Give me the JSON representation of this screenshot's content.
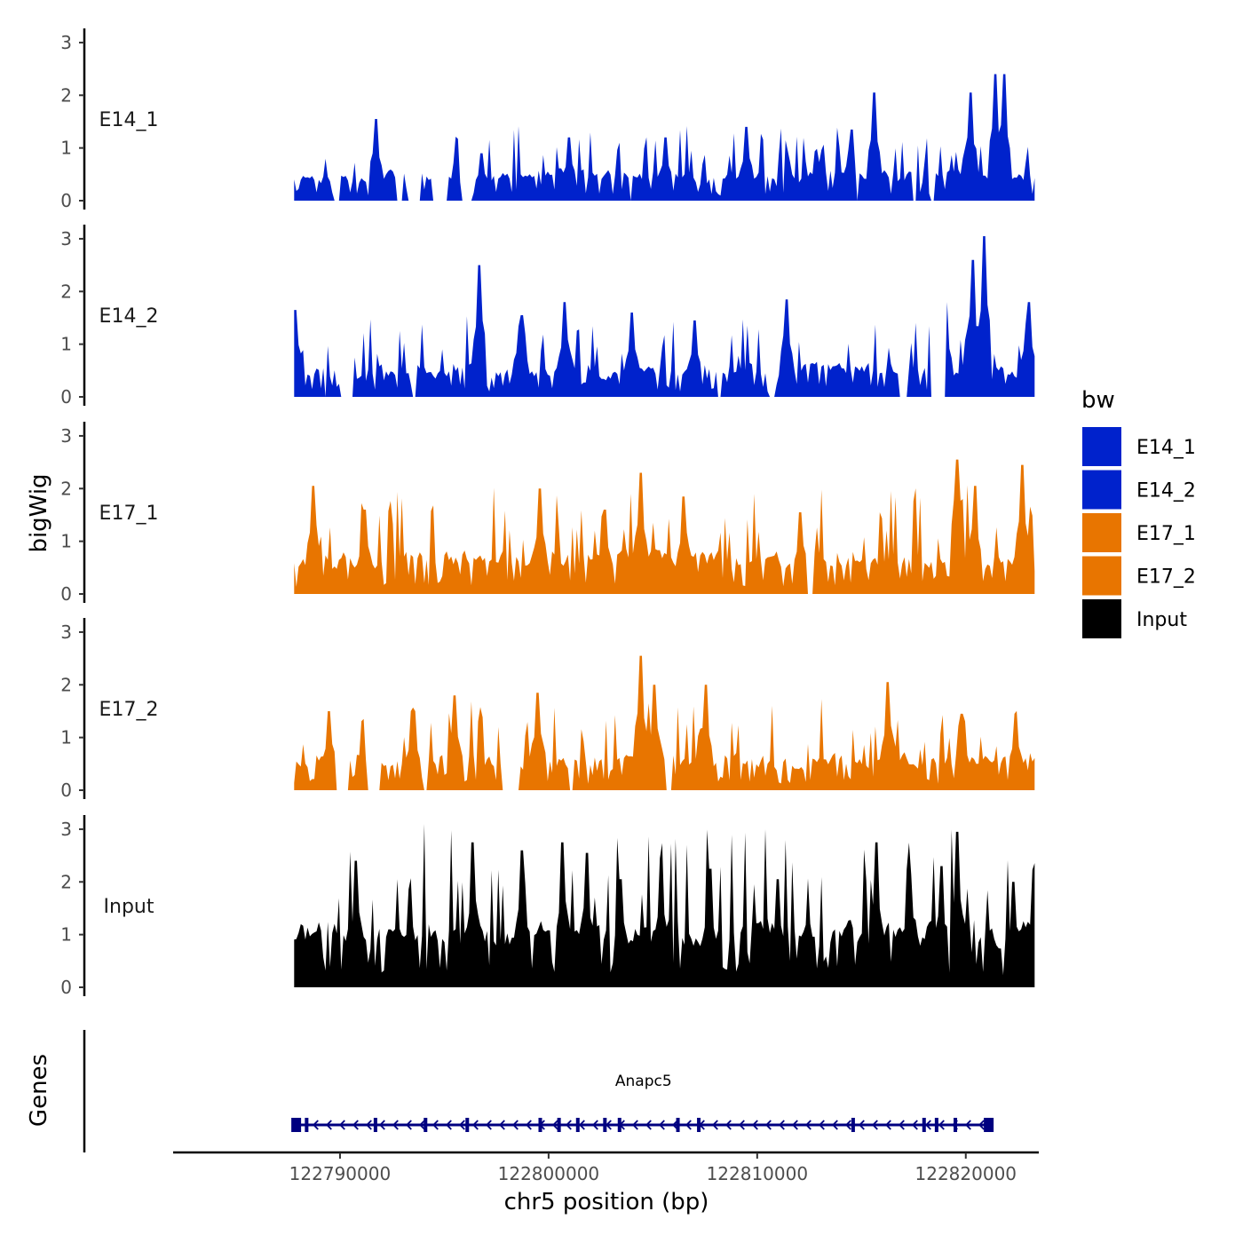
{
  "chart_data": {
    "type": "area",
    "chromosome": "chr5",
    "xlabel": "chr5 position (bp)",
    "ylabel": "bigWig",
    "xlim": [
      122782000,
      122823500
    ],
    "data_range": [
      122787800,
      122823300
    ],
    "x_ticks": [
      122790000,
      122800000,
      122810000,
      122820000
    ],
    "x_tick_labels": [
      "122790000",
      "122800000",
      "122810000",
      "122820000"
    ],
    "ylim": [
      0,
      3.1
    ],
    "y_ticks": [
      0,
      1,
      2,
      3
    ],
    "y_tick_labels": [
      "0",
      "1",
      "2",
      "3"
    ],
    "legend": {
      "title": "bw",
      "position": "right",
      "entries": [
        {
          "label": "E14_1",
          "color": "#0022CC"
        },
        {
          "label": "E14_2",
          "color": "#0022CC"
        },
        {
          "label": "E17_1",
          "color": "#E87500"
        },
        {
          "label": "E17_2",
          "color": "#E87500"
        },
        {
          "label": "Input",
          "color": "#000000"
        }
      ]
    },
    "series": [
      {
        "name": "E14_1",
        "color": "#0022CC",
        "seed": 11,
        "base": 0.45,
        "peaks": [
          [
            122791700,
            1.55
          ],
          [
            122796800,
            0.9
          ],
          [
            122801000,
            1.2
          ],
          [
            122805600,
            1.2
          ],
          [
            122809500,
            1.4
          ],
          [
            122814500,
            1.35
          ],
          [
            122815600,
            2.05
          ],
          [
            122820200,
            2.05
          ],
          [
            122821400,
            2.4
          ],
          [
            122821800,
            2.4
          ]
        ],
        "gaps": [
          [
            122789700,
            122790000
          ],
          [
            122792700,
            122793000
          ],
          [
            122793200,
            122793900
          ],
          [
            122794400,
            122795200
          ],
          [
            122795800,
            122796400
          ],
          [
            122803900,
            122804000
          ],
          [
            122814800,
            122814900
          ],
          [
            122817400,
            122817600
          ],
          [
            122818300,
            122818500
          ]
        ]
      },
      {
        "name": "E14_2",
        "color": "#0022CC",
        "seed": 23,
        "base": 0.5,
        "peaks": [
          [
            122787900,
            1.65
          ],
          [
            122796700,
            2.5
          ],
          [
            122798700,
            1.55
          ],
          [
            122800800,
            1.8
          ],
          [
            122804000,
            1.6
          ],
          [
            122807000,
            1.45
          ],
          [
            122811400,
            1.85
          ],
          [
            122819000,
            1.8
          ],
          [
            122820300,
            2.6
          ],
          [
            122820900,
            3.05
          ],
          [
            122823000,
            1.8
          ]
        ],
        "gaps": [
          [
            122789200,
            122789400
          ],
          [
            122790000,
            122790600
          ],
          [
            122793500,
            122793700
          ],
          [
            122808100,
            122808300
          ],
          [
            122810500,
            122810900
          ],
          [
            122816800,
            122817200
          ],
          [
            122818300,
            122819100
          ]
        ]
      },
      {
        "name": "E17_1",
        "color": "#E87500",
        "seed": 37,
        "base": 0.65,
        "peaks": [
          [
            122788700,
            2.05
          ],
          [
            122791200,
            1.6
          ],
          [
            122799600,
            2.0
          ],
          [
            122802700,
            1.6
          ],
          [
            122804400,
            2.3
          ],
          [
            122806500,
            1.85
          ],
          [
            122812100,
            1.55
          ],
          [
            122819600,
            2.55
          ],
          [
            122820400,
            2.05
          ],
          [
            122822700,
            2.45
          ]
        ],
        "gaps": [
          [
            122812400,
            122812700
          ]
        ]
      },
      {
        "name": "E17_2",
        "color": "#E87500",
        "seed": 53,
        "base": 0.55,
        "peaks": [
          [
            122789500,
            1.5
          ],
          [
            122793500,
            1.5
          ],
          [
            122795500,
            1.8
          ],
          [
            122799500,
            1.85
          ],
          [
            122804400,
            2.55
          ],
          [
            122805100,
            2.0
          ],
          [
            122807500,
            2.0
          ],
          [
            122816300,
            2.05
          ],
          [
            122819800,
            1.45
          ],
          [
            122822400,
            1.45
          ]
        ],
        "gaps": [
          [
            122789800,
            122790400
          ],
          [
            122791300,
            122791900
          ],
          [
            122794000,
            122794200
          ],
          [
            122797800,
            122798600
          ],
          [
            122801000,
            122801200
          ],
          [
            122805600,
            122805900
          ]
        ]
      },
      {
        "name": "Input",
        "color": "#000000",
        "seed": 71,
        "base": 1.0,
        "peaks": [
          [
            122790800,
            2.4
          ],
          [
            122796400,
            2.75
          ],
          [
            122798700,
            2.6
          ],
          [
            122800700,
            2.75
          ],
          [
            122801800,
            2.55
          ],
          [
            122803500,
            2.05
          ],
          [
            122805400,
            2.45
          ],
          [
            122807700,
            2.25
          ],
          [
            122811000,
            2.05
          ],
          [
            122815700,
            2.75
          ],
          [
            122818800,
            2.3
          ],
          [
            122819600,
            2.95
          ],
          [
            122822300,
            2.0
          ]
        ],
        "gaps": []
      }
    ],
    "genes": [
      {
        "name": "Anapc5",
        "strand": "-",
        "start": 122787800,
        "end": 122821300,
        "exons": [
          122787900,
          122788400,
          122791700,
          122794100,
          122796100,
          122799600,
          122800500,
          122801400,
          122802700,
          122803400,
          122806200,
          122807200,
          122814600,
          122818000,
          122818600,
          122819500,
          122821100
        ]
      }
    ],
    "genes_label": "Genes"
  }
}
